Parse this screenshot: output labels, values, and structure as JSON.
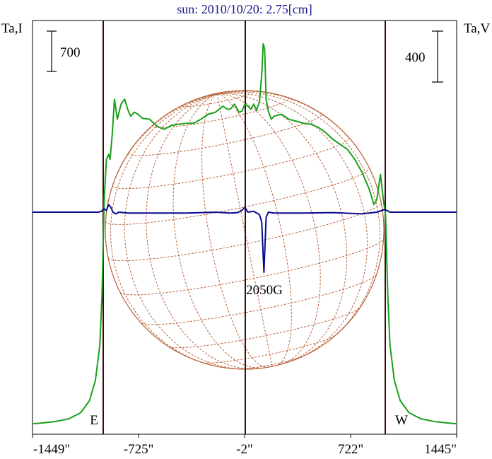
{
  "chart_data": {
    "type": "line",
    "title": "sun: 2010/10/20: 2.75[cm]",
    "left_axis_label": "Ta,I",
    "right_axis_label": "Ta,V",
    "left_scale_bar": "700",
    "right_scale_bar": "400",
    "x_ticks": [
      "-1449\"",
      "-725\"",
      "-2\"",
      "722\"",
      "1445\""
    ],
    "x_tick_values": [
      -1449,
      -725,
      -2,
      722,
      1445
    ],
    "xlim": [
      -1449,
      1445
    ],
    "limb_markers": [
      {
        "label": "E",
        "x": -973
      },
      {
        "label": "W",
        "x": 973
      }
    ],
    "center_line_x": -2,
    "annotation": {
      "text": "2050G",
      "x": 130
    },
    "colors": {
      "intensity": "#1aa01a",
      "polarization": "#0a0a8c",
      "disk": "#b8643c",
      "grid": "#b8643c",
      "vertical_lines": "#3a0a0a",
      "title": "#1a1a8c"
    },
    "series": [
      {
        "name": "Ta,I",
        "color": "#1aa01a",
        "x": [
          -1449,
          -1400,
          -1300,
          -1200,
          -1120,
          -1060,
          -1020,
          -990,
          -975,
          -960,
          -945,
          -930,
          -920,
          -905,
          -890,
          -870,
          -845,
          -820,
          -800,
          -780,
          -755,
          -730,
          -700,
          -650,
          -600,
          -550,
          -500,
          -450,
          -400,
          -350,
          -300,
          -250,
          -200,
          -150,
          -120,
          -100,
          -70,
          -40,
          -20,
          0,
          20,
          40,
          60,
          80,
          100,
          115,
          125,
          135,
          145,
          160,
          180,
          200,
          250,
          300,
          350,
          400,
          450,
          500,
          550,
          600,
          650,
          700,
          750,
          800,
          850,
          880,
          900,
          925,
          945,
          960,
          975,
          990,
          1020,
          1060,
          1120,
          1200,
          1300,
          1400,
          1445
        ],
        "y": [
          20,
          25,
          40,
          70,
          130,
          250,
          450,
          800,
          1300,
          2250,
          2650,
          2700,
          2650,
          2900,
          3250,
          3050,
          3200,
          3250,
          3150,
          3080,
          3120,
          3100,
          3060,
          3050,
          2980,
          2950,
          2990,
          3000,
          3010,
          3010,
          3050,
          3100,
          3120,
          3180,
          3150,
          3150,
          3200,
          3120,
          3130,
          3200,
          3180,
          3150,
          3200,
          3140,
          3230,
          3500,
          3800,
          3750,
          3250,
          3130,
          3050,
          3080,
          3100,
          3050,
          3030,
          3010,
          3000,
          2970,
          2920,
          2850,
          2800,
          2750,
          2650,
          2520,
          2350,
          2200,
          2250,
          2500,
          2250,
          2100,
          1300,
          800,
          450,
          250,
          130,
          70,
          40,
          25,
          20
        ]
      },
      {
        "name": "Ta,V",
        "color": "#0a0a8c",
        "x": [
          -1449,
          -1100,
          -1000,
          -980,
          -960,
          -945,
          -930,
          -915,
          -900,
          -880,
          -860,
          -800,
          -600,
          -400,
          -200,
          -100,
          -50,
          -20,
          0,
          20,
          60,
          100,
          115,
          125,
          130,
          135,
          145,
          160,
          200,
          400,
          600,
          800,
          900,
          950,
          970,
          990,
          1020,
          1100,
          1445
        ],
        "y": [
          0,
          0,
          0,
          10,
          40,
          20,
          90,
          60,
          0,
          -20,
          0,
          -10,
          -10,
          -10,
          0,
          -10,
          -5,
          20,
          60,
          0,
          10,
          -30,
          -120,
          -520,
          -720,
          -500,
          -60,
          0,
          -10,
          -10,
          -5,
          -20,
          0,
          30,
          20,
          0,
          0,
          0,
          0
        ]
      }
    ]
  }
}
